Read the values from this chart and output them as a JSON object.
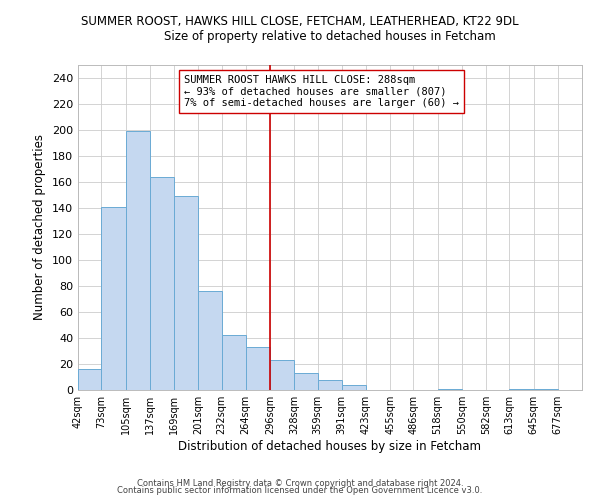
{
  "title": "SUMMER ROOST, HAWKS HILL CLOSE, FETCHAM, LEATHERHEAD, KT22 9DL",
  "subtitle": "Size of property relative to detached houses in Fetcham",
  "xlabel": "Distribution of detached houses by size in Fetcham",
  "ylabel": "Number of detached properties",
  "bar_left_edges": [
    42,
    73,
    105,
    137,
    169,
    201,
    232,
    264,
    296,
    328,
    359,
    391,
    423,
    455,
    486,
    518,
    550,
    582,
    613,
    645
  ],
  "bar_widths": [
    31,
    32,
    32,
    32,
    32,
    31,
    32,
    32,
    32,
    31,
    32,
    32,
    32,
    31,
    32,
    32,
    32,
    31,
    32,
    32
  ],
  "bar_heights": [
    16,
    141,
    199,
    164,
    149,
    76,
    42,
    33,
    23,
    13,
    8,
    4,
    0,
    0,
    0,
    1,
    0,
    0,
    1,
    1
  ],
  "bar_color": "#c5d8f0",
  "bar_edgecolor": "#6aaad4",
  "reference_line_x": 296,
  "reference_line_color": "#cc0000",
  "ylim": [
    0,
    250
  ],
  "yticks": [
    0,
    20,
    40,
    60,
    80,
    100,
    120,
    140,
    160,
    180,
    200,
    220,
    240
  ],
  "xtick_labels": [
    "42sqm",
    "73sqm",
    "105sqm",
    "137sqm",
    "169sqm",
    "201sqm",
    "232sqm",
    "264sqm",
    "296sqm",
    "328sqm",
    "359sqm",
    "391sqm",
    "423sqm",
    "455sqm",
    "486sqm",
    "518sqm",
    "550sqm",
    "582sqm",
    "613sqm",
    "645sqm",
    "677sqm"
  ],
  "xtick_positions": [
    42,
    73,
    105,
    137,
    169,
    201,
    232,
    264,
    296,
    328,
    359,
    391,
    423,
    455,
    486,
    518,
    550,
    582,
    613,
    645,
    677
  ],
  "annotation_line1": "SUMMER ROOST HAWKS HILL CLOSE: 288sqm",
  "annotation_line2": "← 93% of detached houses are smaller (807)",
  "annotation_line3": "7% of semi-detached houses are larger (60) →",
  "footer1": "Contains HM Land Registry data © Crown copyright and database right 2024.",
  "footer2": "Contains public sector information licensed under the Open Government Licence v3.0.",
  "background_color": "#ffffff",
  "grid_color": "#cccccc"
}
